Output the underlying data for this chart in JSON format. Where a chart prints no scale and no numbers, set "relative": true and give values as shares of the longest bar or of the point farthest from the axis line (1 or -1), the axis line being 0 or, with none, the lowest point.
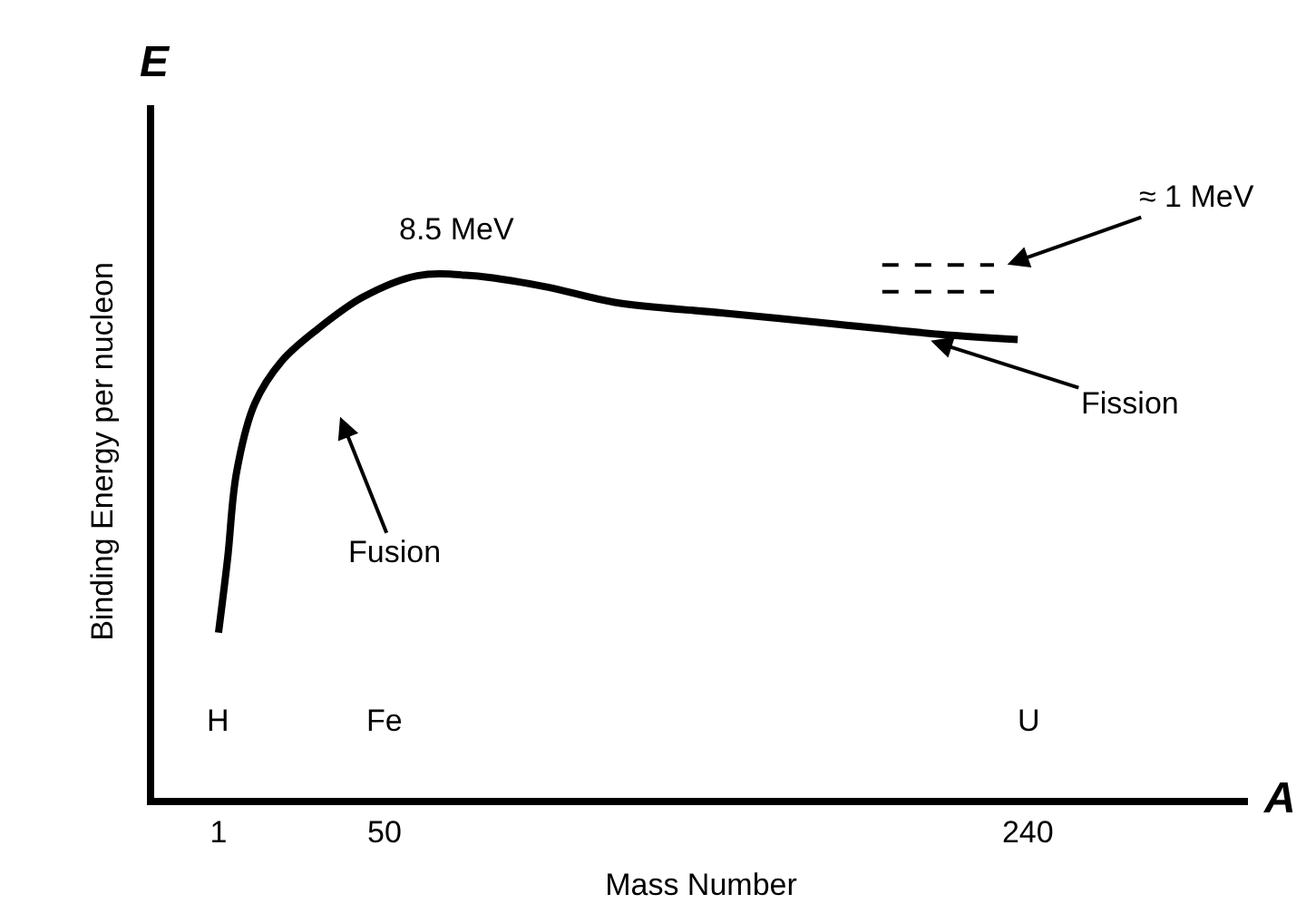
{
  "chart_data": {
    "type": "line",
    "relative": true,
    "xlabel": "Mass Number",
    "ylabel": "Binding Energy per nucleon",
    "xlim": [
      -18,
      305
    ],
    "xticks": [
      1,
      50,
      240
    ],
    "marker": "none",
    "series": [
      {
        "color": "#000000",
        "line_style": "solid",
        "x": [
          1,
          3.7,
          6.3,
          11.7,
          19.7,
          30.3,
          43.7,
          59.7,
          75.7,
          97,
          118,
          150,
          182,
          214,
          237
        ],
        "values": [
          0.31,
          0.45,
          0.61,
          0.74,
          0.82,
          0.88,
          0.94,
          0.98,
          0.98,
          0.96,
          0.93,
          0.91,
          0.89,
          0.87,
          0.86
        ]
      },
      {
        "color": "#000000",
        "line_style": "dashed",
        "x": [
          197,
          230
        ],
        "values": [
          1,
          1
        ]
      },
      {
        "color": "#000000",
        "line_style": "dashed",
        "x": [
          197,
          230
        ],
        "values": [
          0.95,
          0.95
        ]
      }
    ],
    "annotations": [
      "8.5 MeV",
      "≈ 1 MeV",
      "Fusion",
      "Fission",
      "H",
      "Fe",
      "U",
      "E",
      "A"
    ]
  }
}
